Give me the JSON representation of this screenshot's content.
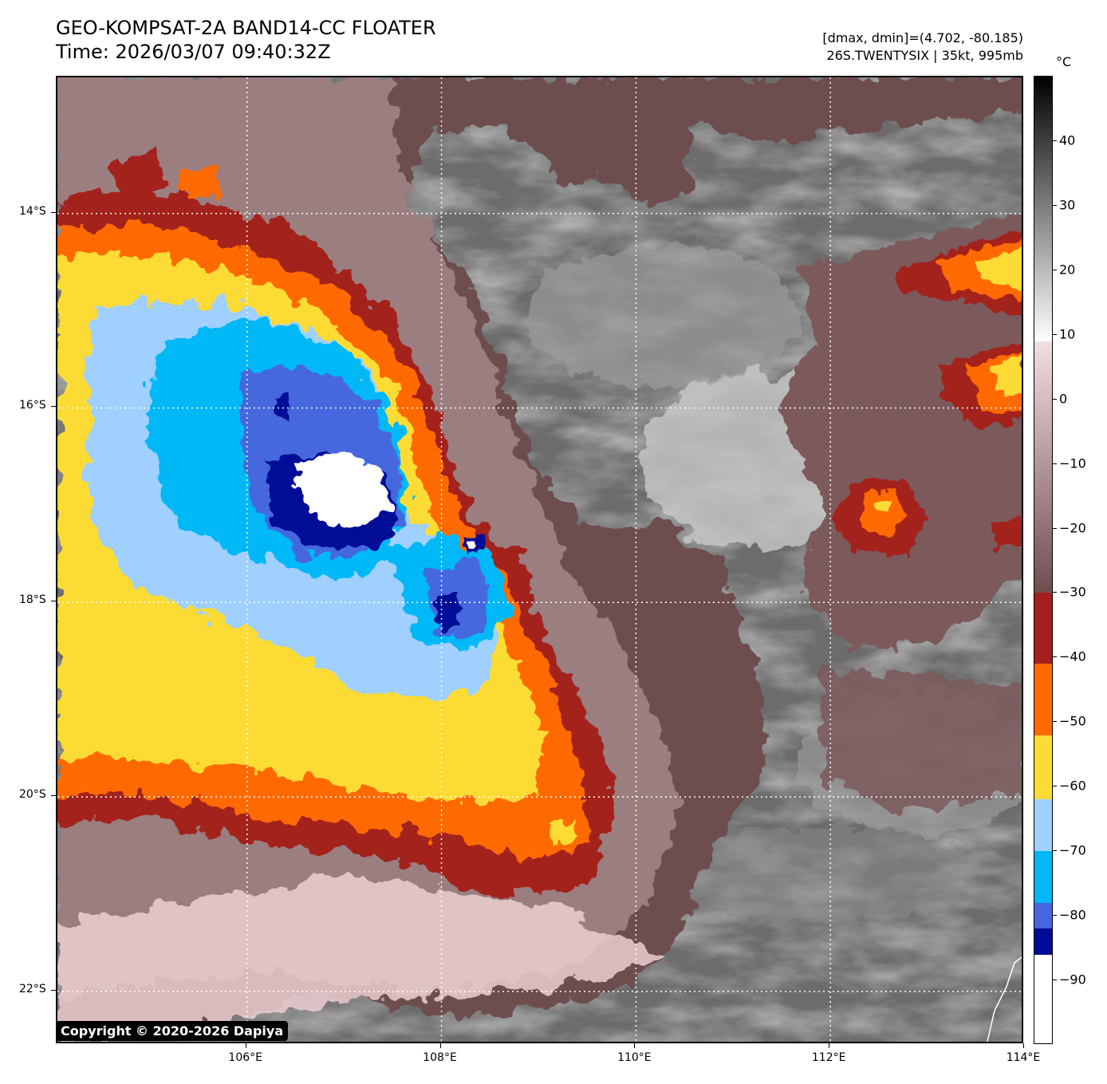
{
  "header": {
    "title": "GEO-KOMPSAT-2A BAND14-CC FLOATER",
    "time": "Time: 2026/03/07 09:40:32Z",
    "dmax_dmin": "[dmax, dmin]=(4.702, -80.185)",
    "storm": "26S.TWENTYSIX | 35kt, 995mb"
  },
  "map": {
    "lat_labels": [
      "14°S",
      "16°S",
      "18°S",
      "20°S",
      "22°S"
    ],
    "lon_labels": [
      "106°E",
      "108°E",
      "110°E",
      "112°E",
      "114°E"
    ],
    "lat_values": [
      -14,
      -16,
      -18,
      -20,
      -22
    ],
    "lon_values": [
      106,
      108,
      110,
      112,
      114
    ],
    "extent": {
      "lon_min": 104.05,
      "lon_max": 114.0,
      "lat_min": -22.55,
      "lat_max": -12.6
    }
  },
  "colorbar": {
    "unit": "°C",
    "tick_labels": [
      "40",
      "30",
      "20",
      "10",
      "0",
      "−10",
      "−20",
      "−30",
      "−40",
      "−50",
      "−60",
      "−70",
      "−80",
      "−90"
    ],
    "tick_values": [
      40,
      30,
      20,
      10,
      0,
      -10,
      -20,
      -30,
      -40,
      -50,
      -60,
      -70,
      -80,
      -90
    ],
    "range": [
      -100,
      50
    ],
    "bands": [
      {
        "from": 9,
        "to": 50,
        "top": "#ffffff",
        "bottom": "#000000",
        "kind": "gradient-gray"
      },
      {
        "from": -30,
        "to": 9,
        "top": "#6e4d4f",
        "bottom": "#f4dede",
        "kind": "gradient-brown"
      },
      {
        "from": -41,
        "to": -30,
        "color": "#a3201f"
      },
      {
        "from": -52,
        "to": -41,
        "color": "#ff6a00"
      },
      {
        "from": -62,
        "to": -52,
        "color": "#fddb35"
      },
      {
        "from": -70,
        "to": -62,
        "color": "#9fd0ff"
      },
      {
        "from": -78,
        "to": -70,
        "color": "#00b8f5"
      },
      {
        "from": -82,
        "to": -78,
        "color": "#4467df"
      },
      {
        "from": -86,
        "to": -82,
        "color": "#000c96"
      },
      {
        "from": -100,
        "to": -86,
        "color": "#ffffff"
      }
    ]
  },
  "palette": {
    "land_gray": "#6c6c6c",
    "cloud_gray": "#a8a8a8",
    "bright_gray": "#d9d9d9",
    "brown_dark": "#6e4d4f",
    "brown_mid": "#9b7e80",
    "pink_light": "#eccfd1",
    "red": "#a3201f",
    "orange": "#ff6a00",
    "yellow": "#fddb35",
    "light_blue": "#9fd0ff",
    "cyan": "#00b8f5",
    "royal_blue": "#4467df",
    "navy": "#000c96",
    "white": "#ffffff"
  },
  "copyright": "Copyright © 2020-2026 Dapiya"
}
